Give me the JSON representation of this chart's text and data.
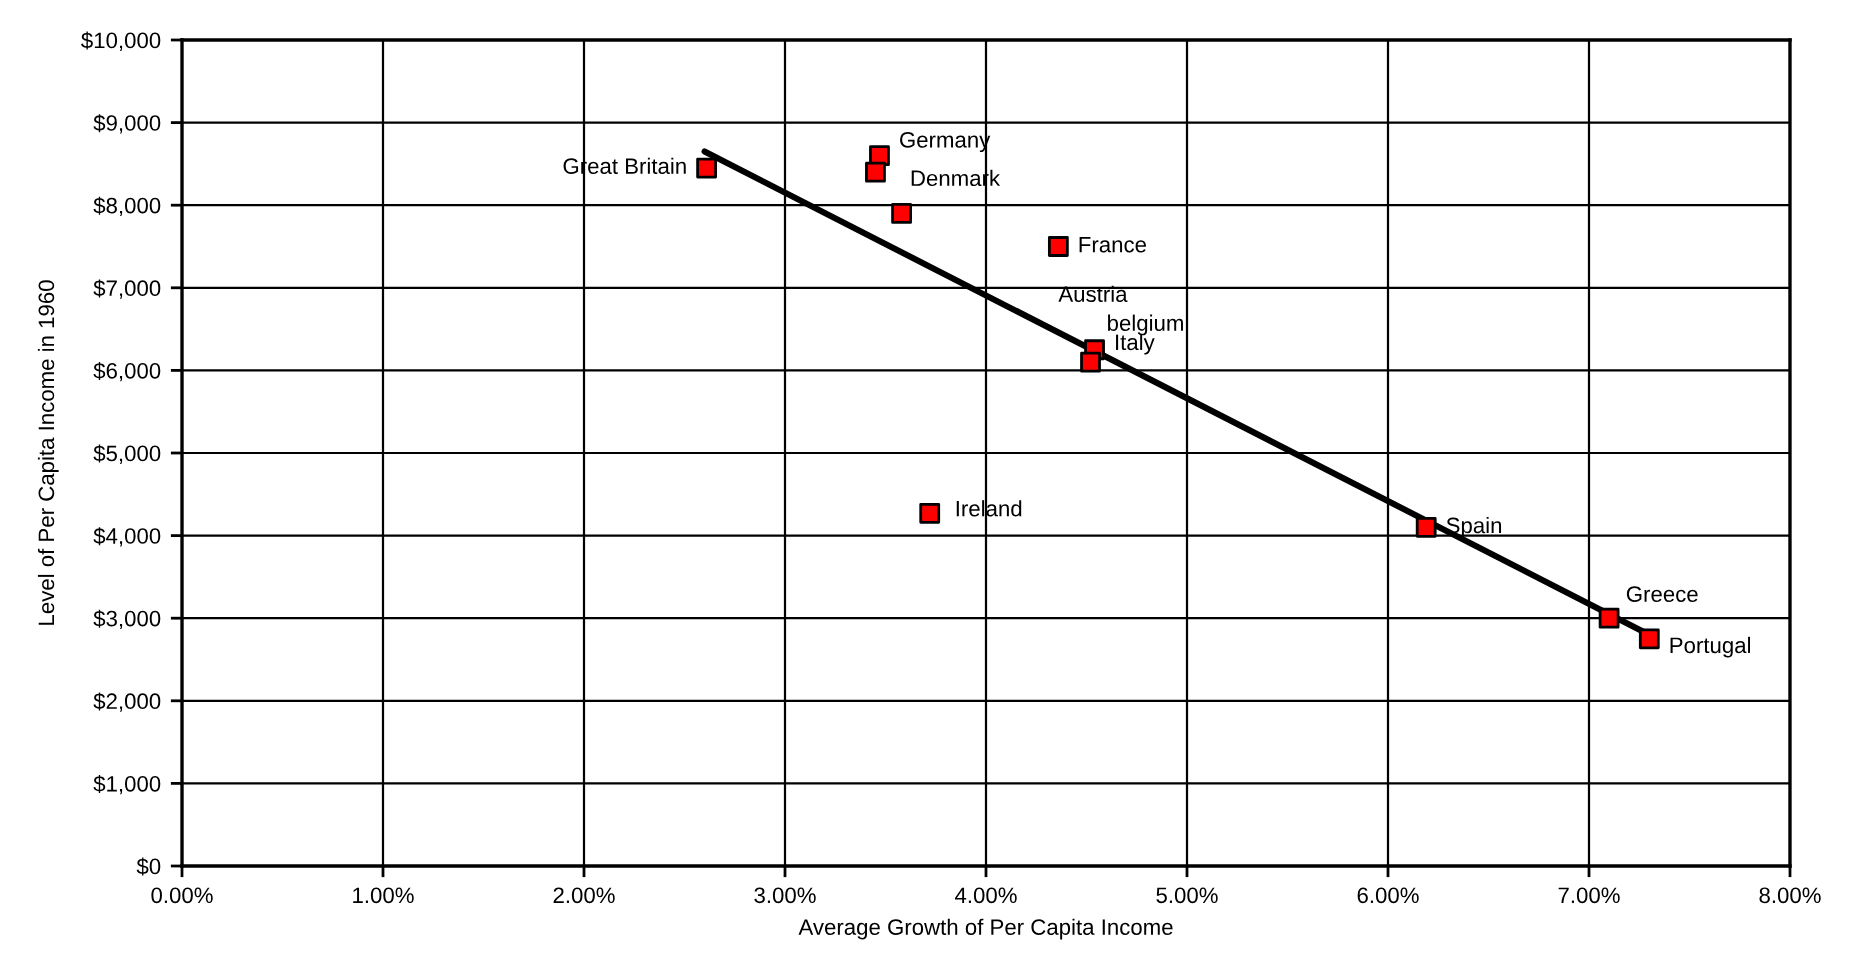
{
  "chart_data": {
    "type": "scatter",
    "xlabel": "Average Growth of Per Capita Income",
    "ylabel": "Level of Per Capita Income in 1960",
    "xlim": [
      0,
      8
    ],
    "ylim": [
      0,
      10000
    ],
    "xticks": [
      {
        "value": 0,
        "label": "0.00%"
      },
      {
        "value": 1,
        "label": "1.00%"
      },
      {
        "value": 2,
        "label": "2.00%"
      },
      {
        "value": 3,
        "label": "3.00%"
      },
      {
        "value": 4,
        "label": "4.00%"
      },
      {
        "value": 5,
        "label": "5.00%"
      },
      {
        "value": 6,
        "label": "6.00%"
      },
      {
        "value": 7,
        "label": "7.00%"
      },
      {
        "value": 8,
        "label": "8.00%"
      }
    ],
    "yticks": [
      {
        "value": 0,
        "label": "$0"
      },
      {
        "value": 1000,
        "label": "$1,000"
      },
      {
        "value": 2000,
        "label": "$2,000"
      },
      {
        "value": 3000,
        "label": "$3,000"
      },
      {
        "value": 4000,
        "label": "$4,000"
      },
      {
        "value": 5000,
        "label": "$5,000"
      },
      {
        "value": 6000,
        "label": "$6,000"
      },
      {
        "value": 7000,
        "label": "$7,000"
      },
      {
        "value": 8000,
        "label": "$8,000"
      },
      {
        "value": 9000,
        "label": "$9,000"
      },
      {
        "value": 10000,
        "label": "$10,000"
      }
    ],
    "grid": true,
    "legend": false,
    "marker": "square",
    "series": [
      {
        "type": "scatter",
        "color": "#ff0000",
        "x": [
          2.61,
          3.47,
          3.45,
          3.58,
          4.36,
          4.54,
          4.52,
          3.72,
          6.19,
          7.1,
          7.3
        ],
        "values": [
          8450,
          8600,
          8400,
          7900,
          7500,
          6250,
          6100,
          4270,
          4100,
          3000,
          2750
        ]
      },
      {
        "type": "line",
        "color": "#000000",
        "marker": "none",
        "x": [
          2.6,
          7.3
        ],
        "values": [
          8650,
          2800
        ]
      }
    ],
    "annotations": [
      {
        "text": "Great Britain",
        "x": 2.61,
        "y": 8450
      },
      {
        "text": "Germany",
        "x": 3.47,
        "y": 8600
      },
      {
        "text": "Denmark",
        "x": 3.58,
        "y": 7900
      },
      {
        "text": "France",
        "x": 4.36,
        "y": 7500
      },
      "Austria",
      "belgium",
      {
        "text": "Italy",
        "x": 4.54,
        "y": 6250
      },
      {
        "text": "Ireland",
        "x": 3.72,
        "y": 4270
      },
      {
        "text": "Spain",
        "x": 6.19,
        "y": 4100
      },
      {
        "text": "Greece",
        "x": 7.1,
        "y": 3000
      },
      {
        "text": "Portugal",
        "x": 7.3,
        "y": 2750
      }
    ]
  }
}
